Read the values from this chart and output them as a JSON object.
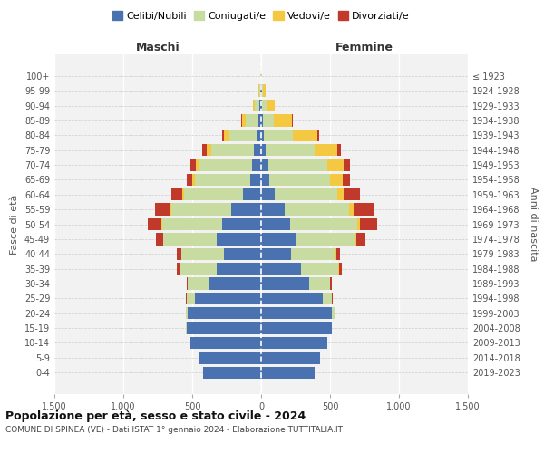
{
  "age_groups": [
    "0-4",
    "5-9",
    "10-14",
    "15-19",
    "20-24",
    "25-29",
    "30-34",
    "35-39",
    "40-44",
    "45-49",
    "50-54",
    "55-59",
    "60-64",
    "65-69",
    "70-74",
    "75-79",
    "80-84",
    "85-89",
    "90-94",
    "95-99",
    "100+"
  ],
  "birth_years": [
    "2019-2023",
    "2014-2018",
    "2009-2013",
    "2004-2008",
    "1999-2003",
    "1994-1998",
    "1989-1993",
    "1984-1988",
    "1979-1983",
    "1974-1978",
    "1969-1973",
    "1964-1968",
    "1959-1963",
    "1954-1958",
    "1949-1953",
    "1944-1948",
    "1939-1943",
    "1934-1938",
    "1929-1933",
    "1924-1928",
    "≤ 1923"
  ],
  "male": {
    "celibe": [
      420,
      450,
      510,
      540,
      530,
      480,
      380,
      320,
      270,
      320,
      280,
      220,
      130,
      80,
      65,
      50,
      30,
      20,
      10,
      5,
      2
    ],
    "coniugato": [
      0,
      0,
      0,
      5,
      15,
      60,
      150,
      270,
      310,
      390,
      440,
      430,
      430,
      400,
      380,
      310,
      200,
      90,
      35,
      8,
      2
    ],
    "vedovo": [
      0,
      0,
      0,
      0,
      0,
      1,
      1,
      2,
      2,
      3,
      5,
      8,
      10,
      20,
      30,
      35,
      40,
      30,
      15,
      5,
      1
    ],
    "divorziato": [
      0,
      0,
      0,
      0,
      2,
      5,
      10,
      20,
      30,
      50,
      100,
      110,
      80,
      40,
      35,
      30,
      10,
      5,
      2,
      0,
      0
    ]
  },
  "female": {
    "nubile": [
      390,
      430,
      480,
      510,
      510,
      450,
      350,
      290,
      220,
      250,
      210,
      170,
      100,
      60,
      50,
      30,
      20,
      12,
      8,
      5,
      2
    ],
    "coniugata": [
      0,
      0,
      0,
      5,
      20,
      65,
      150,
      270,
      320,
      430,
      490,
      470,
      450,
      440,
      430,
      360,
      210,
      80,
      30,
      10,
      2
    ],
    "vedova": [
      0,
      0,
      0,
      0,
      0,
      1,
      2,
      3,
      5,
      8,
      15,
      30,
      50,
      90,
      120,
      160,
      180,
      130,
      60,
      15,
      2
    ],
    "divorziata": [
      0,
      0,
      0,
      0,
      2,
      5,
      10,
      20,
      30,
      70,
      130,
      150,
      120,
      55,
      45,
      30,
      10,
      5,
      2,
      0,
      0
    ]
  },
  "colors": {
    "celibe": "#4b72b0",
    "coniugato": "#c8dba0",
    "vedovo": "#f5c842",
    "divorziato": "#c0392b"
  },
  "xlim": 1500,
  "title": "Popolazione per età, sesso e stato civile - 2024",
  "subtitle": "COMUNE DI SPINEA (VE) - Dati ISTAT 1° gennaio 2024 - Elaborazione TUTTITALIA.IT",
  "ylabel_left": "Fasce di età",
  "ylabel_right": "Anni di nascita",
  "maschi_label": "Maschi",
  "femmine_label": "Femmine",
  "legend_labels": [
    "Celibi/Nubili",
    "Coniugati/e",
    "Vedovi/e",
    "Divorziati/e"
  ],
  "bg_color": "#f2f2f2",
  "grid_color": "#ffffff",
  "grid_y_color": "#cccccc"
}
